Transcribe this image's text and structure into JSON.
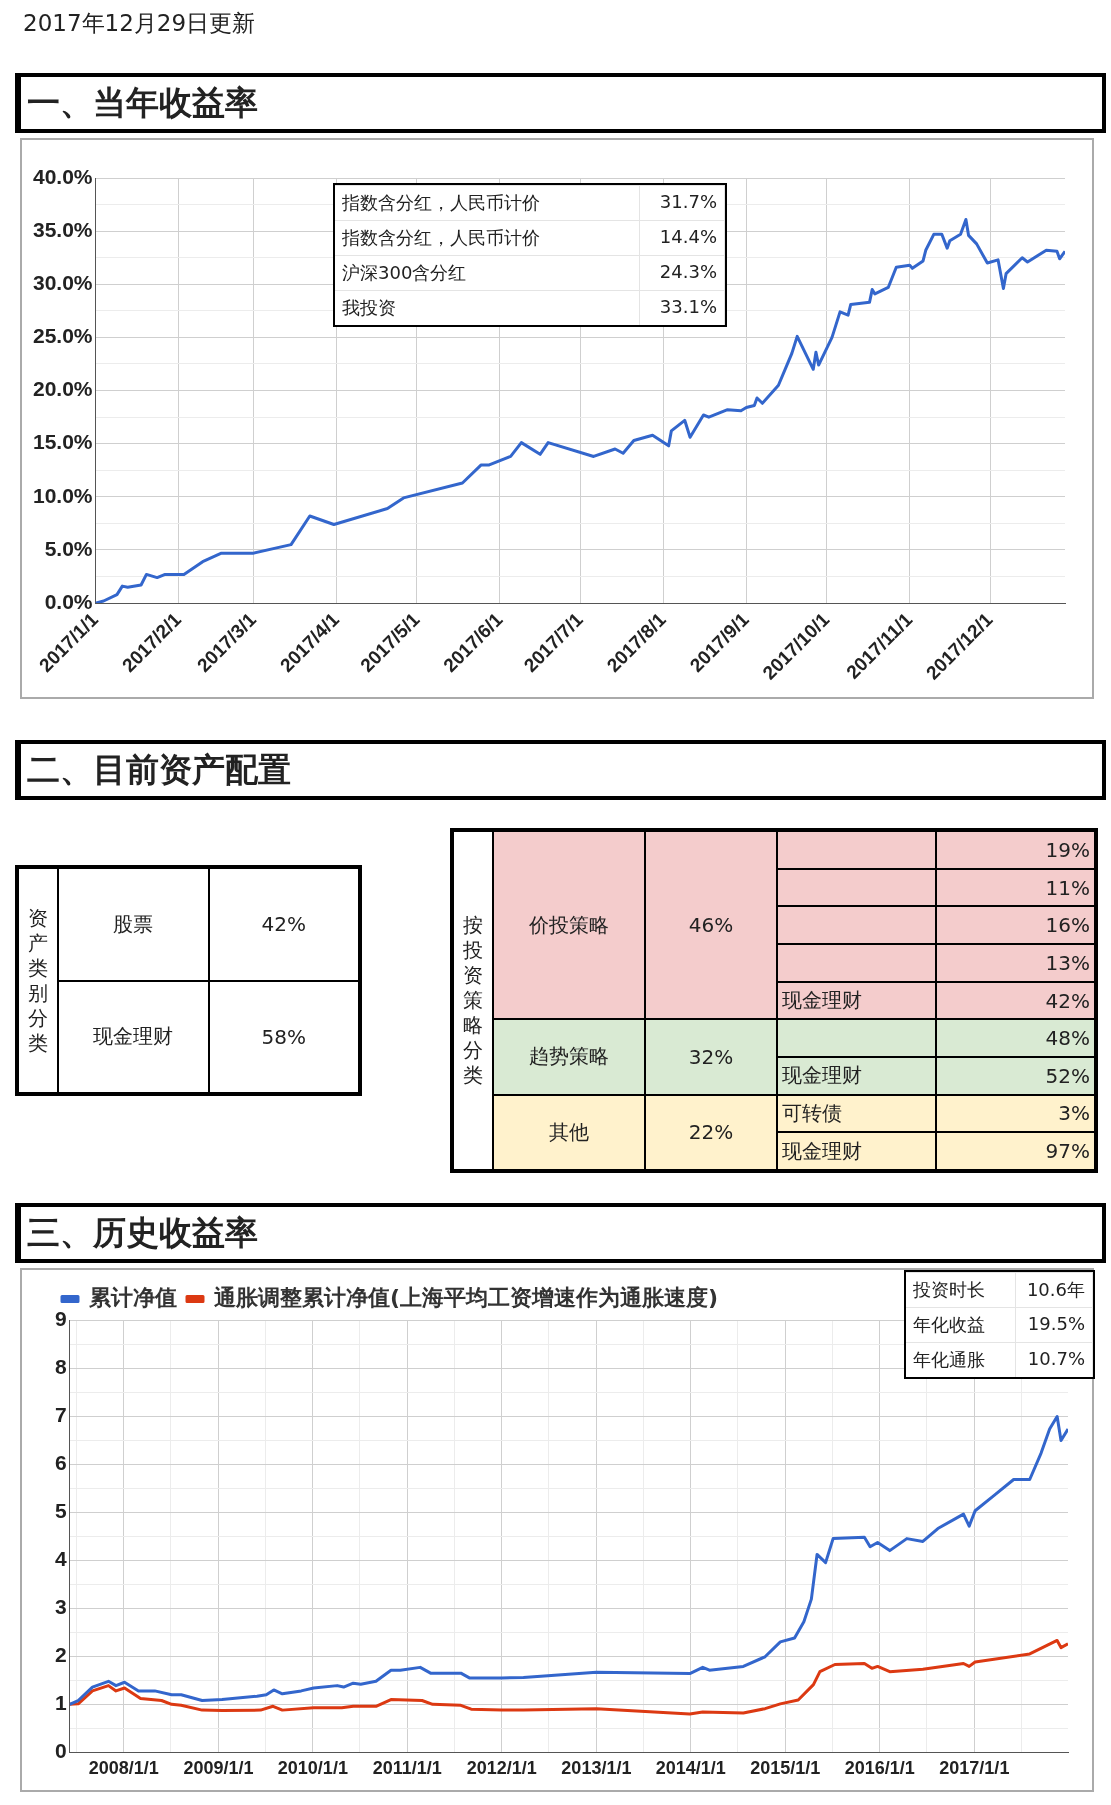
{
  "chart_data": [
    {
      "type": "line",
      "title": "一、当年收益率",
      "subtitle": "2017年12月29日更新",
      "x": [
        "2017-01-01",
        "2017-01-04",
        "2017-01-09",
        "2017-01-11",
        "2017-01-13",
        "2017-01-18",
        "2017-01-20",
        "2017-01-24",
        "2017-01-27",
        "2017-02-03",
        "2017-02-10",
        "2017-02-17",
        "2017-03-01",
        "2017-03-15",
        "2017-03-22",
        "2017-03-31",
        "2017-04-20",
        "2017-04-26",
        "2017-05-18",
        "2017-05-25",
        "2017-05-28",
        "2017-06-05",
        "2017-06-09",
        "2017-06-16",
        "2017-06-19",
        "2017-07-06",
        "2017-07-14",
        "2017-07-17",
        "2017-07-21",
        "2017-07-28",
        "2017-08-03",
        "2017-08-04",
        "2017-08-09",
        "2017-08-11",
        "2017-08-16",
        "2017-08-18",
        "2017-08-25",
        "2017-08-30",
        "2017-09-01",
        "2017-09-04",
        "2017-09-05",
        "2017-09-07",
        "2017-09-13",
        "2017-09-16",
        "2017-09-18",
        "2017-09-20",
        "2017-09-26",
        "2017-09-27",
        "2017-09-28",
        "2017-10-03",
        "2017-10-06",
        "2017-10-09",
        "2017-10-10",
        "2017-10-17",
        "2017-10-18",
        "2017-10-19",
        "2017-10-24",
        "2017-10-27",
        "2017-11-01",
        "2017-11-02",
        "2017-11-06",
        "2017-11-07",
        "2017-11-10",
        "2017-11-13",
        "2017-11-15",
        "2017-11-16",
        "2017-11-20",
        "2017-11-22",
        "2017-11-23",
        "2017-11-26",
        "2017-11-30",
        "2017-12-04",
        "2017-12-06",
        "2017-12-07",
        "2017-12-13",
        "2017-12-15",
        "2017-12-22",
        "2017-12-26",
        "2017-12-27",
        "2017-12-29"
      ],
      "values": [
        0,
        0.2,
        0.8,
        1.6,
        1.5,
        1.7,
        2.7,
        2.4,
        2.7,
        2.7,
        3.9,
        4.7,
        4.7,
        5.5,
        8.2,
        7.4,
        8.9,
        9.9,
        11.3,
        13.0,
        13.0,
        13.8,
        15.1,
        14.0,
        15.1,
        13.8,
        14.5,
        14.1,
        15.3,
        15.8,
        14.8,
        16.2,
        17.2,
        15.6,
        17.7,
        17.5,
        18.2,
        18.1,
        18.4,
        18.6,
        19.3,
        18.8,
        20.5,
        22.3,
        23.5,
        25.1,
        22.0,
        23.6,
        22.4,
        25.0,
        27.4,
        27.1,
        28.1,
        28.3,
        29.5,
        29.1,
        29.7,
        31.6,
        31.8,
        31.5,
        32.2,
        33.2,
        34.7,
        34.7,
        33.4,
        34.1,
        34.7,
        36.1,
        34.6,
        33.8,
        32.0,
        32.3,
        29.6,
        31.0,
        32.5,
        32.1,
        33.2,
        33.1,
        32.4,
        33.1
      ],
      "color": "#3366cc",
      "xlim": [
        "2017-01-01",
        "2017-12-29"
      ],
      "xticks": [
        {
          "value": "2017-01-01",
          "label": "2017/1/1"
        },
        {
          "value": "2017-02-01",
          "label": "2017/2/1"
        },
        {
          "value": "2017-03-01",
          "label": "2017/3/1"
        },
        {
          "value": "2017-04-01",
          "label": "2017/4/1"
        },
        {
          "value": "2017-05-01",
          "label": "2017/5/1"
        },
        {
          "value": "2017-06-01",
          "label": "2017/6/1"
        },
        {
          "value": "2017-07-01",
          "label": "2017/7/1"
        },
        {
          "value": "2017-08-01",
          "label": "2017/8/1"
        },
        {
          "value": "2017-09-01",
          "label": "2017/9/1"
        },
        {
          "value": "2017-10-01",
          "label": "2017/10/1"
        },
        {
          "value": "2017-11-01",
          "label": "2017/11/1"
        },
        {
          "value": "2017-12-01",
          "label": "2017/12/1"
        }
      ],
      "ylim": [
        0,
        40
      ],
      "yticks": [
        {
          "value": 0,
          "label": "0.0%"
        },
        {
          "value": 2.5,
          "label": null
        },
        {
          "value": 5,
          "label": "5.0%"
        },
        {
          "value": 7.5,
          "label": null
        },
        {
          "value": 10,
          "label": "10.0%"
        },
        {
          "value": 12.5,
          "label": null
        },
        {
          "value": 15,
          "label": "15.0%"
        },
        {
          "value": 17.5,
          "label": null
        },
        {
          "value": 20,
          "label": "20.0%"
        },
        {
          "value": 22.5,
          "label": null
        },
        {
          "value": 25,
          "label": "25.0%"
        },
        {
          "value": 27.5,
          "label": null
        },
        {
          "value": 30,
          "label": "30.0%"
        },
        {
          "value": 32.5,
          "label": null
        },
        {
          "value": 35,
          "label": "35.0%"
        },
        {
          "value": 37.5,
          "label": null
        },
        {
          "value": 40,
          "label": "40.0%"
        }
      ],
      "grid": true,
      "annotations": [
        "指数含分红，人民币计价",
        "31.7%",
        "指数含分红，人民币计价",
        "14.4%",
        "沪深300含分红",
        "24.3%",
        "我投资",
        "33.1%"
      ]
    },
    {
      "type": "other",
      "title": "二、目前资产配置",
      "ylabel": "资产类别分类",
      "categories": [
        "股票",
        "现金理财"
      ],
      "values": [
        42,
        58
      ],
      "value_labels": [
        "42%",
        "58%"
      ]
    },
    {
      "type": "other",
      "ylabel": "按投资策略分类",
      "categories": [
        "价投策略",
        "趋势策略",
        "其他"
      ],
      "values": [
        46,
        32,
        22
      ],
      "value_labels": [
        "46%",
        "32%",
        "22%"
      ],
      "colors": [
        "#f4cccc",
        "#d9ead3",
        "#fff2cc"
      ]
    },
    {
      "type": "other",
      "categories": [
        null,
        null,
        null,
        null,
        "现金理财"
      ],
      "values": [
        19,
        11,
        16,
        13,
        42
      ],
      "value_labels": [
        "19%",
        "11%",
        "16%",
        "13%",
        "42%"
      ],
      "color": "#f4cccc"
    },
    {
      "type": "other",
      "categories": [
        null,
        "现金理财"
      ],
      "values": [
        48,
        52
      ],
      "value_labels": [
        "48%",
        "52%"
      ],
      "color": "#d9ead3"
    },
    {
      "type": "other",
      "categories": [
        "可转债",
        "现金理财"
      ],
      "values": [
        3,
        97
      ],
      "value_labels": [
        "3%",
        "97%"
      ],
      "color": "#fff2cc"
    },
    {
      "type": "line",
      "title": "三、历史收益率",
      "series": [
        {
          "name": "累计净值",
          "color": "#3366cc",
          "x": [
            "2007-06-06",
            "2007-07-09",
            "2007-09-02",
            "2007-11-03",
            "2007-12-02",
            "2008-01-04",
            "2008-02-27",
            "2008-04-30",
            "2008-07-04",
            "2008-08-10",
            "2008-10-30",
            "2009-01-15",
            "2009-05-30",
            "2009-07-05",
            "2009-08-03",
            "2009-09-05",
            "2009-11-17",
            "2010-01-04",
            "2010-04-05",
            "2010-04-30",
            "2010-06-06",
            "2010-07-05",
            "2010-09-02",
            "2010-10-30",
            "2010-12-05",
            "2011-02-20",
            "2011-04-01",
            "2011-07-27",
            "2011-08-29",
            "2012-01-01",
            "2012-03-25",
            "2013-01-01",
            "2013-12-28",
            "2014-02-16",
            "2014-03-14",
            "2014-07-23",
            "2014-10-15",
            "2014-12-13",
            "2015-02-06",
            "2015-03-14",
            "2015-04-12",
            "2015-05-04",
            "2015-06-06",
            "2015-07-05",
            "2015-11-03",
            "2015-11-25",
            "2015-12-24",
            "2016-02-09",
            "2016-04-15",
            "2016-06-16",
            "2016-08-13",
            "2016-11-20",
            "2016-12-12",
            "2017-01-04",
            "2017-03-21",
            "2017-06-02",
            "2017-08-03",
            "2017-09-16",
            "2017-10-19",
            "2017-11-17",
            "2017-12-02",
            "2017-12-29"
          ],
          "values": [
            1.0,
            1.08,
            1.36,
            1.48,
            1.39,
            1.46,
            1.28,
            1.28,
            1.2,
            1.2,
            1.08,
            1.1,
            1.17,
            1.2,
            1.3,
            1.22,
            1.28,
            1.34,
            1.39,
            1.36,
            1.44,
            1.42,
            1.48,
            1.71,
            1.71,
            1.77,
            1.65,
            1.65,
            1.55,
            1.55,
            1.56,
            1.67,
            1.64,
            1.77,
            1.71,
            1.79,
            1.99,
            2.3,
            2.38,
            2.72,
            3.19,
            4.12,
            3.95,
            4.45,
            4.48,
            4.28,
            4.37,
            4.2,
            4.45,
            4.39,
            4.66,
            4.96,
            4.71,
            5.03,
            5.36,
            5.68,
            5.68,
            6.23,
            6.73,
            6.99,
            6.49,
            6.73
          ]
        },
        {
          "name": "通胀调整累计净值(上海平均工资增速作为通胀速度)",
          "color": "#dc3912",
          "x": [
            "2007-06-06",
            "2007-07-09",
            "2007-09-02",
            "2007-11-03",
            "2007-12-02",
            "2008-01-04",
            "2008-03-06",
            "2008-05-26",
            "2008-07-04",
            "2008-08-10",
            "2008-10-30",
            "2009-01-15",
            "2009-06-13",
            "2009-07-31",
            "2009-09-05",
            "2010-01-04",
            "2010-04-23",
            "2010-06-06",
            "2010-09-02",
            "2010-10-30",
            "2011-02-27",
            "2011-04-09",
            "2011-07-27",
            "2011-09-05",
            "2012-01-01",
            "2012-03-25",
            "2013-01-01",
            "2013-12-28",
            "2014-02-16",
            "2014-07-23",
            "2014-10-15",
            "2014-12-13",
            "2015-02-20",
            "2015-04-20",
            "2015-05-15",
            "2015-07-12",
            "2015-11-03",
            "2015-12-02",
            "2015-12-24",
            "2016-02-09",
            "2016-06-16",
            "2016-11-20",
            "2016-12-12",
            "2017-01-04",
            "2017-08-03",
            "2017-11-17",
            "2017-12-02",
            "2017-12-29"
          ],
          "values": [
            1.0,
            1.01,
            1.28,
            1.39,
            1.28,
            1.34,
            1.12,
            1.08,
            1.0,
            0.98,
            0.88,
            0.87,
            0.88,
            0.96,
            0.88,
            0.93,
            0.93,
            0.96,
            0.96,
            1.1,
            1.08,
            1.0,
            0.98,
            0.9,
            0.88,
            0.88,
            0.91,
            0.8,
            0.84,
            0.82,
            0.91,
            1.01,
            1.09,
            1.41,
            1.68,
            1.83,
            1.85,
            1.75,
            1.79,
            1.68,
            1.73,
            1.85,
            1.79,
            1.88,
            2.05,
            2.33,
            2.18,
            2.26
          ]
        }
      ],
      "xlim": [
        "2007-06-06",
        "2017-12-29"
      ],
      "xticks": [
        {
          "value": "2007-07-01",
          "label": null
        },
        {
          "value": "2008-01-01",
          "label": "2008/1/1"
        },
        {
          "value": "2008-07-01",
          "label": null
        },
        {
          "value": "2009-01-01",
          "label": "2009/1/1"
        },
        {
          "value": "2009-07-01",
          "label": null
        },
        {
          "value": "2010-01-01",
          "label": "2010/1/1"
        },
        {
          "value": "2010-07-01",
          "label": null
        },
        {
          "value": "2011-01-01",
          "label": "2011/1/1"
        },
        {
          "value": "2011-07-01",
          "label": null
        },
        {
          "value": "2012-01-01",
          "label": "2012/1/1"
        },
        {
          "value": "2012-07-01",
          "label": null
        },
        {
          "value": "2013-01-01",
          "label": "2013/1/1"
        },
        {
          "value": "2013-07-01",
          "label": null
        },
        {
          "value": "2014-01-01",
          "label": "2014/1/1"
        },
        {
          "value": "2014-07-01",
          "label": null
        },
        {
          "value": "2015-01-01",
          "label": "2015/1/1"
        },
        {
          "value": "2015-07-01",
          "label": null
        },
        {
          "value": "2016-01-01",
          "label": "2016/1/1"
        },
        {
          "value": "2016-07-01",
          "label": null
        },
        {
          "value": "2017-01-01",
          "label": "2017/1/1"
        },
        {
          "value": "2017-07-01",
          "label": null
        }
      ],
      "ylim": [
        0,
        9
      ],
      "yticks": [
        0,
        {
          "value": 0.5,
          "label": null
        },
        1,
        {
          "value": 1.5,
          "label": null
        },
        2,
        {
          "value": 2.5,
          "label": null
        },
        3,
        {
          "value": 3.5,
          "label": null
        },
        4,
        {
          "value": 4.5,
          "label": null
        },
        5,
        {
          "value": 5.5,
          "label": null
        },
        6,
        {
          "value": 6.5,
          "label": null
        },
        7,
        {
          "value": 7.5,
          "label": null
        },
        8,
        {
          "value": 8.5,
          "label": null
        },
        9
      ],
      "grid": true,
      "legend": "top left",
      "annotations": [
        "投资时长",
        "10.6年",
        "年化收益",
        "19.5%",
        "年化通胀",
        "10.7%"
      ]
    }
  ]
}
